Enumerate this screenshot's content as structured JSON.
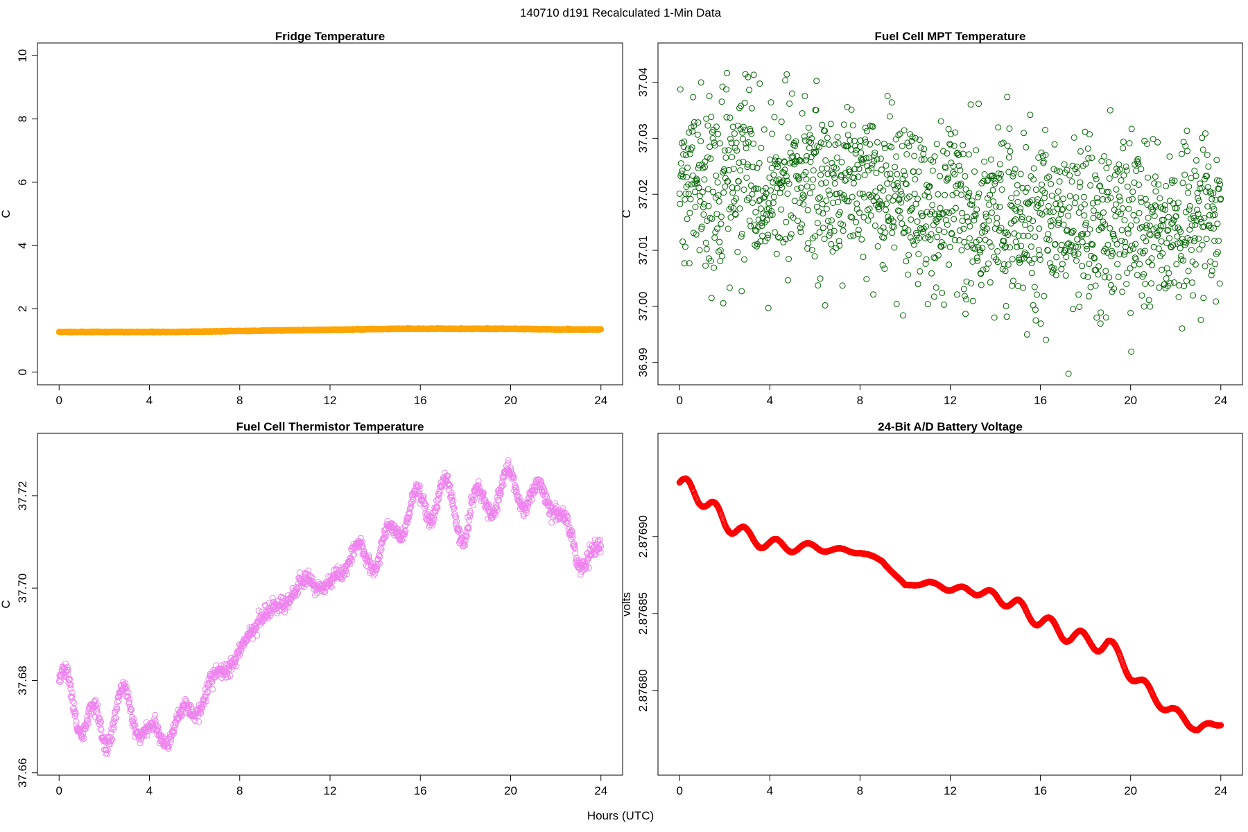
{
  "figure": {
    "title": "140710   d191   Recalculated 1-Min Data",
    "xlabel": "Hours (UTC)"
  },
  "chart_data": [
    {
      "type": "scatter",
      "title": "Fridge Temperature",
      "xlabel": "",
      "ylabel": "C",
      "xlim": [
        -0.96,
        24.96
      ],
      "ylim": [
        -0.4,
        10.4
      ],
      "xticks": [
        0,
        4,
        8,
        12,
        16,
        20,
        24
      ],
      "yticks": [
        0,
        2,
        4,
        6,
        8,
        10
      ],
      "ytick_labels": [
        "0",
        "2",
        "4",
        "6",
        "8",
        "10"
      ],
      "color": "#ffa500",
      "series": [
        {
          "x": [
            0,
            1,
            2,
            3,
            4,
            5,
            6,
            7,
            8,
            9,
            10,
            11,
            12,
            13,
            14,
            15,
            16,
            17,
            18,
            19,
            20,
            21,
            22,
            23,
            24
          ],
          "y": [
            1.27,
            1.27,
            1.27,
            1.27,
            1.27,
            1.27,
            1.28,
            1.29,
            1.3,
            1.31,
            1.32,
            1.33,
            1.34,
            1.35,
            1.36,
            1.37,
            1.37,
            1.37,
            1.37,
            1.37,
            1.37,
            1.36,
            1.35,
            1.35,
            1.35
          ]
        }
      ]
    },
    {
      "type": "scatter",
      "title": "Fuel Cell MPT Temperature",
      "xlabel": "",
      "ylabel": "C",
      "xlim": [
        -0.96,
        24.96
      ],
      "ylim": [
        36.986,
        37.047
      ],
      "xticks": [
        0,
        4,
        8,
        12,
        16,
        20,
        24
      ],
      "yticks": [
        36.99,
        37.0,
        37.01,
        37.02,
        37.03,
        37.04
      ],
      "ytick_labels": [
        "36.99",
        "37.00",
        "37.01",
        "37.02",
        "37.03",
        "37.04"
      ],
      "color": "#006400",
      "series": [
        {
          "x": [
            0,
            1,
            2,
            3,
            4,
            5,
            6,
            7,
            8,
            9,
            10,
            11,
            12,
            13,
            14,
            15,
            16,
            17,
            18,
            19,
            20,
            21,
            22,
            23,
            24
          ],
          "y": [
            37.022,
            37.021,
            37.023,
            37.024,
            37.02,
            37.025,
            37.021,
            37.022,
            37.02,
            37.019,
            37.019,
            37.018,
            37.019,
            37.017,
            37.016,
            37.016,
            37.015,
            37.015,
            37.014,
            37.015,
            37.016,
            37.014,
            37.013,
            37.015,
            37.017
          ]
        }
      ]
    },
    {
      "type": "scatter",
      "title": "Fuel Cell Thermistor Temperature",
      "xlabel": "",
      "ylabel": "C",
      "xlim": [
        -0.96,
        24.96
      ],
      "ylim": [
        37.6595,
        37.7335
      ],
      "xticks": [
        0,
        4,
        8,
        12,
        16,
        20,
        24
      ],
      "yticks": [
        37.66,
        37.68,
        37.7,
        37.72
      ],
      "ytick_labels": [
        "37.66",
        "37.68",
        "37.70",
        "37.72"
      ],
      "color": "#ee82ee",
      "series": [
        {
          "x": [
            0,
            1,
            2,
            3,
            4,
            5,
            6,
            7,
            8,
            9,
            10,
            11,
            12,
            13,
            14,
            15,
            16,
            17,
            18,
            19,
            20,
            21,
            22,
            23,
            24
          ],
          "y": [
            37.68,
            37.672,
            37.669,
            37.676,
            37.667,
            37.67,
            37.674,
            37.681,
            37.686,
            37.694,
            37.697,
            37.702,
            37.7,
            37.708,
            37.706,
            37.714,
            37.718,
            37.72,
            37.714,
            37.72,
            37.722,
            37.72,
            37.719,
            37.706,
            37.708
          ]
        }
      ]
    },
    {
      "type": "scatter",
      "title": "24-Bit A/D Battery Voltage",
      "xlabel": "",
      "ylabel": "volts",
      "xlim": [
        -0.96,
        24.96
      ],
      "ylim": [
        2.876745,
        2.876967
      ],
      "xticks": [
        0,
        4,
        8,
        12,
        16,
        20,
        24
      ],
      "yticks": [
        2.8768,
        2.87685,
        2.8769
      ],
      "ytick_labels": [
        "2.87680",
        "2.87685",
        "2.87690"
      ],
      "color": "#ff0000",
      "series": [
        {
          "x": [
            0,
            1,
            2,
            3,
            4,
            5,
            6,
            7,
            8,
            9,
            10,
            11,
            12,
            13,
            14,
            15,
            16,
            17,
            18,
            19,
            20,
            21,
            22,
            23,
            24
          ],
          "y": [
            2.876935,
            2.876925,
            2.87691,
            2.8769,
            2.876895,
            2.876893,
            2.876893,
            2.876891,
            2.87689,
            2.876884,
            2.876868,
            2.87687,
            2.876866,
            2.876865,
            2.876861,
            2.876855,
            2.876845,
            2.876838,
            2.876832,
            2.87683,
            2.876812,
            2.876796,
            2.876785,
            2.876775,
            2.876779
          ]
        }
      ]
    }
  ]
}
